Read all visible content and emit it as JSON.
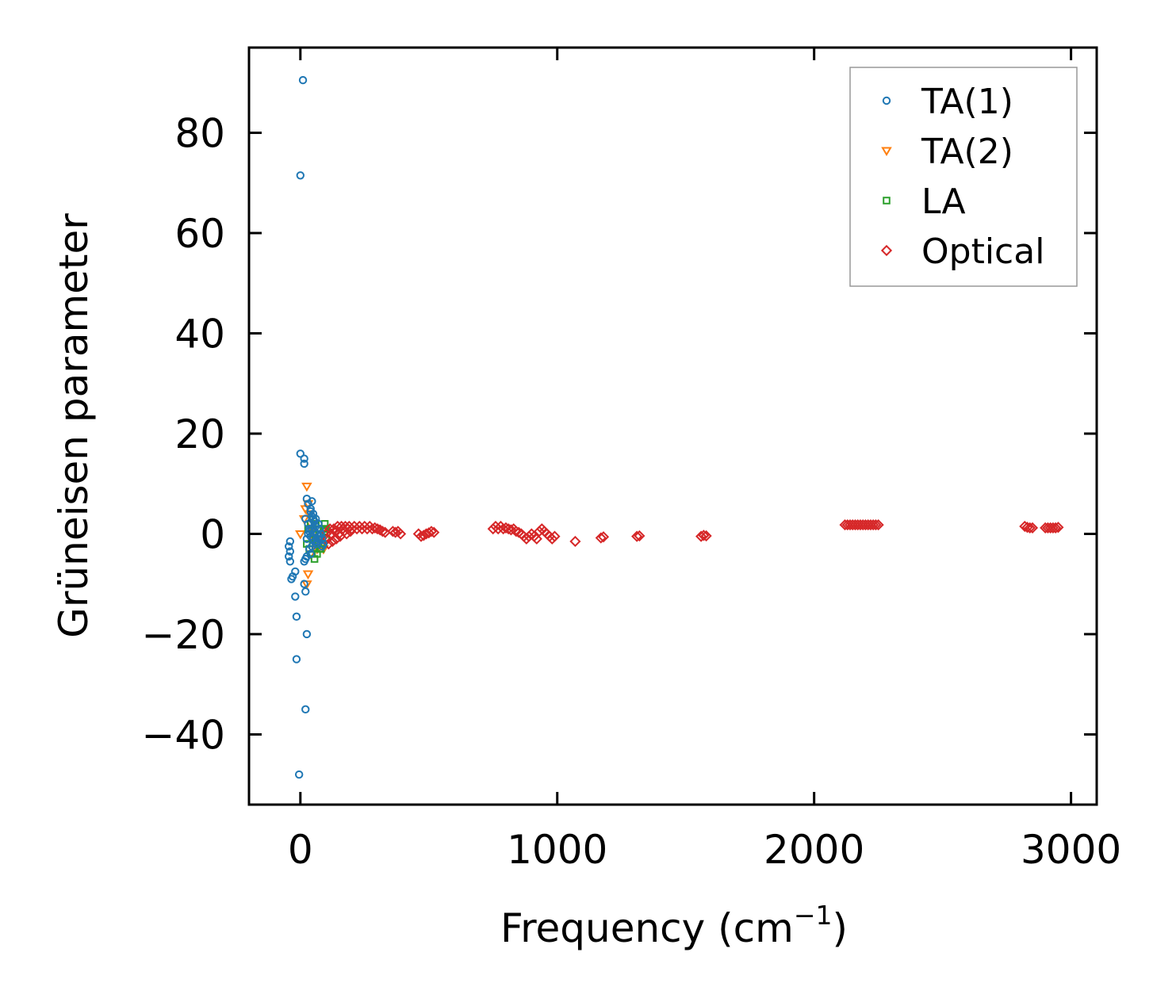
{
  "chart_data": {
    "type": "scatter",
    "title": "",
    "xlabel": "Frequency (cm",
    "xlabel_sup": "−1",
    "xlabel_end": ")",
    "ylabel": "Grüneisen parameter",
    "xlim": [
      -200,
      3100
    ],
    "ylim": [
      -54,
      97
    ],
    "x_ticks": [
      0,
      1000,
      2000,
      3000
    ],
    "x_tick_labels": [
      "0",
      "1000",
      "2000",
      "3000"
    ],
    "y_ticks": [
      -40,
      -20,
      0,
      20,
      40,
      60,
      80
    ],
    "y_tick_labels": [
      "−40",
      "−20",
      "0",
      "20",
      "40",
      "60",
      "80"
    ],
    "grid": false,
    "legend_position": "top-right",
    "series": [
      {
        "name": "TA(1)",
        "marker": "circle",
        "color": "#1f77b4",
        "points": [
          [
            10,
            90.5
          ],
          [
            0,
            71.5
          ],
          [
            0,
            16
          ],
          [
            15,
            15
          ],
          [
            15,
            14
          ],
          [
            25,
            7
          ],
          [
            30,
            6
          ],
          [
            20,
            3
          ],
          [
            40,
            4.5
          ],
          [
            45,
            3.5
          ],
          [
            50,
            3
          ],
          [
            55,
            2.5
          ],
          [
            60,
            1.5
          ],
          [
            45,
            1
          ],
          [
            35,
            0.5
          ],
          [
            30,
            0
          ],
          [
            40,
            -0.5
          ],
          [
            50,
            -1
          ],
          [
            55,
            -1.5
          ],
          [
            60,
            -2
          ],
          [
            65,
            -1.5
          ],
          [
            70,
            -1
          ],
          [
            75,
            -0.5
          ],
          [
            80,
            0
          ],
          [
            85,
            -1
          ],
          [
            90,
            -2
          ],
          [
            45,
            -2.5
          ],
          [
            35,
            -3
          ],
          [
            40,
            -4
          ],
          [
            25,
            -4.5
          ],
          [
            20,
            -5
          ],
          [
            15,
            -5.5
          ],
          [
            -40,
            -1.5
          ],
          [
            -45,
            -2.5
          ],
          [
            -40,
            -3.5
          ],
          [
            -45,
            -4.5
          ],
          [
            -40,
            -5.5
          ],
          [
            -20,
            -7.5
          ],
          [
            -30,
            -8.5
          ],
          [
            -35,
            -9
          ],
          [
            15,
            -10
          ],
          [
            20,
            -11.5
          ],
          [
            -20,
            -12.5
          ],
          [
            -15,
            -16.5
          ],
          [
            25,
            -20
          ],
          [
            -15,
            -25
          ],
          [
            20,
            -35
          ],
          [
            -5,
            -48
          ],
          [
            30,
            2
          ],
          [
            35,
            1
          ],
          [
            25,
            -1
          ],
          [
            50,
            4
          ],
          [
            60,
            3
          ],
          [
            70,
            2
          ],
          [
            75,
            1
          ],
          [
            40,
            5
          ],
          [
            45,
            6.5
          ],
          [
            55,
            0.5
          ],
          [
            65,
            0
          ],
          [
            85,
            -2.5
          ]
        ]
      },
      {
        "name": "TA(2)",
        "marker": "triangle-down",
        "color": "#ff7f0e",
        "points": [
          [
            25,
            9.5
          ],
          [
            30,
            6
          ],
          [
            20,
            5
          ],
          [
            35,
            4
          ],
          [
            15,
            3
          ],
          [
            40,
            2
          ],
          [
            0,
            0
          ],
          [
            45,
            1
          ],
          [
            50,
            0
          ],
          [
            55,
            -1
          ],
          [
            60,
            -2
          ],
          [
            65,
            -3
          ],
          [
            70,
            -2
          ],
          [
            75,
            -1
          ],
          [
            30,
            -8
          ],
          [
            25,
            -10
          ],
          [
            40,
            -4
          ],
          [
            80,
            -1.5
          ],
          [
            85,
            -2
          ],
          [
            90,
            -3
          ]
        ]
      },
      {
        "name": "LA",
        "marker": "square",
        "color": "#2ca02c",
        "points": [
          [
            30,
            1
          ],
          [
            40,
            2
          ],
          [
            50,
            3
          ],
          [
            60,
            2
          ],
          [
            70,
            1
          ],
          [
            80,
            0
          ],
          [
            90,
            1
          ],
          [
            95,
            0.5
          ],
          [
            100,
            -1
          ],
          [
            85,
            -2
          ],
          [
            75,
            -3
          ],
          [
            65,
            -4
          ],
          [
            55,
            -5
          ],
          [
            45,
            -4
          ],
          [
            35,
            -3
          ],
          [
            25,
            -2
          ],
          [
            60,
            -1
          ],
          [
            70,
            -2
          ],
          [
            80,
            -3
          ],
          [
            90,
            -2
          ],
          [
            100,
            1
          ],
          [
            95,
            2
          ],
          [
            50,
            0
          ]
        ]
      },
      {
        "name": "Optical",
        "marker": "diamond",
        "color": "#d62728",
        "points": [
          [
            100,
            0
          ],
          [
            105,
            -1
          ],
          [
            110,
            -2
          ],
          [
            115,
            1
          ],
          [
            120,
            0
          ],
          [
            125,
            -1.5
          ],
          [
            130,
            1
          ],
          [
            135,
            0.5
          ],
          [
            140,
            -1
          ],
          [
            145,
            1.5
          ],
          [
            150,
            0
          ],
          [
            155,
            -0.5
          ],
          [
            160,
            1.5
          ],
          [
            165,
            1
          ],
          [
            170,
            0.5
          ],
          [
            175,
            1.5
          ],
          [
            180,
            0
          ],
          [
            185,
            1
          ],
          [
            190,
            1.5
          ],
          [
            195,
            0.5
          ],
          [
            200,
            1
          ],
          [
            210,
            1.5
          ],
          [
            220,
            1
          ],
          [
            230,
            1.5
          ],
          [
            240,
            1
          ],
          [
            250,
            1.5
          ],
          [
            260,
            1
          ],
          [
            270,
            1.5
          ],
          [
            280,
            1
          ],
          [
            290,
            1.2
          ],
          [
            300,
            1
          ],
          [
            310,
            0.8
          ],
          [
            320,
            0.5
          ],
          [
            330,
            0.3
          ],
          [
            360,
            0.5
          ],
          [
            370,
            0.3
          ],
          [
            380,
            0.5
          ],
          [
            390,
            0
          ],
          [
            460,
            0
          ],
          [
            470,
            -0.5
          ],
          [
            480,
            -0.3
          ],
          [
            490,
            0
          ],
          [
            500,
            0.2
          ],
          [
            510,
            0.5
          ],
          [
            520,
            0.3
          ],
          [
            750,
            1
          ],
          [
            760,
            1.5
          ],
          [
            770,
            1
          ],
          [
            780,
            1.5
          ],
          [
            790,
            1
          ],
          [
            800,
            1.2
          ],
          [
            810,
            1
          ],
          [
            820,
            0.8
          ],
          [
            830,
            1
          ],
          [
            840,
            0.5
          ],
          [
            850,
            0.3
          ],
          [
            860,
            0
          ],
          [
            870,
            -0.5
          ],
          [
            880,
            -1
          ],
          [
            890,
            -0.5
          ],
          [
            900,
            0
          ],
          [
            910,
            -0.5
          ],
          [
            920,
            -1
          ],
          [
            930,
            0.5
          ],
          [
            940,
            1
          ],
          [
            950,
            0.5
          ],
          [
            960,
            0
          ],
          [
            970,
            -0.5
          ],
          [
            980,
            -1
          ],
          [
            990,
            -0.5
          ],
          [
            1070,
            -1.5
          ],
          [
            1170,
            -0.8
          ],
          [
            1180,
            -0.6
          ],
          [
            1310,
            -0.5
          ],
          [
            1320,
            -0.4
          ],
          [
            1560,
            -0.5
          ],
          [
            1570,
            -0.3
          ],
          [
            1580,
            -0.4
          ],
          [
            2120,
            1.8
          ],
          [
            2130,
            1.8
          ],
          [
            2140,
            1.8
          ],
          [
            2150,
            1.8
          ],
          [
            2160,
            1.8
          ],
          [
            2170,
            1.8
          ],
          [
            2180,
            1.8
          ],
          [
            2190,
            1.8
          ],
          [
            2200,
            1.8
          ],
          [
            2210,
            1.8
          ],
          [
            2220,
            1.8
          ],
          [
            2230,
            1.8
          ],
          [
            2240,
            1.8
          ],
          [
            2250,
            1.8
          ],
          [
            2820,
            1.5
          ],
          [
            2830,
            1.3
          ],
          [
            2840,
            1.2
          ],
          [
            2850,
            1.2
          ],
          [
            2900,
            1.2
          ],
          [
            2910,
            1.2
          ],
          [
            2920,
            1.2
          ],
          [
            2930,
            1.2
          ],
          [
            2940,
            1.2
          ],
          [
            2950,
            1.3
          ]
        ]
      }
    ]
  }
}
